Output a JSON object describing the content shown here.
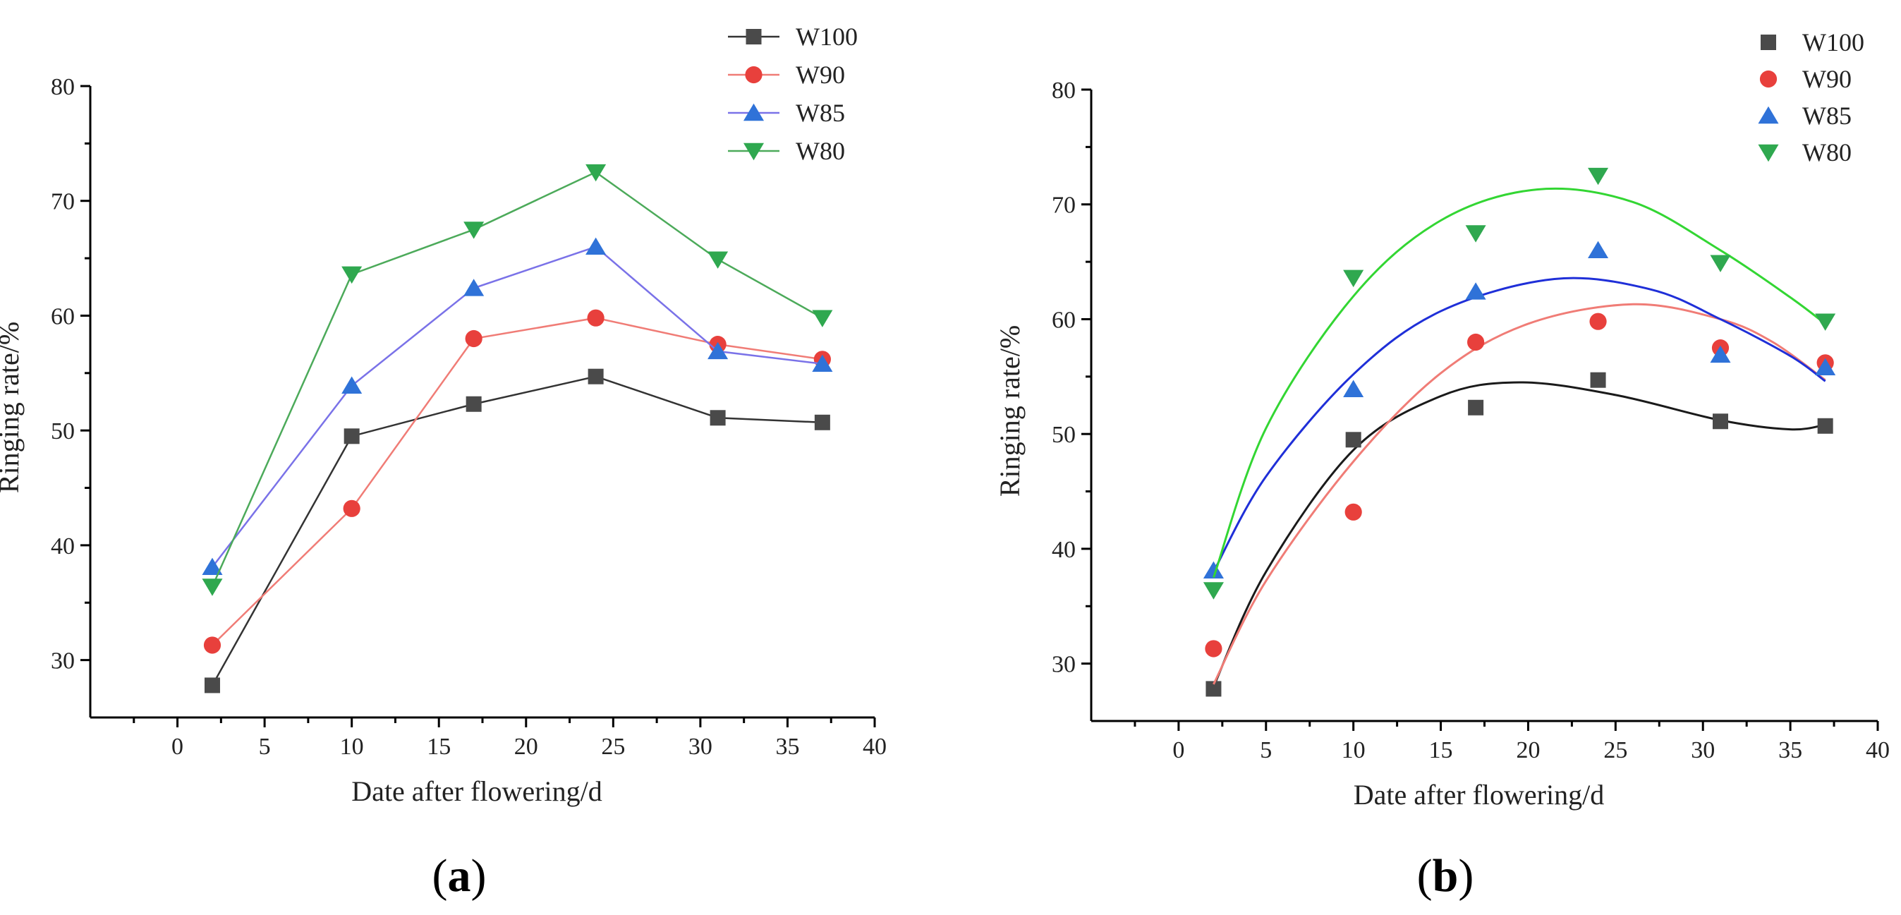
{
  "chart_data": [
    {
      "type": "line",
      "panel_label": "(a)",
      "panel_letter": "a",
      "xlabel": "Date after flowering/d",
      "ylabel": "Ringing rate/%",
      "xlim": [
        -5,
        40
      ],
      "ylim": [
        25,
        80
      ],
      "xticks": [
        0,
        5,
        10,
        15,
        20,
        25,
        30,
        35,
        40
      ],
      "yticks": [
        30,
        40,
        50,
        60,
        70,
        80
      ],
      "legend_position": "top-right",
      "x": [
        2,
        10,
        17,
        24,
        31,
        37
      ],
      "series": [
        {
          "name": "W100",
          "marker": "square",
          "color": "#4a4a4a",
          "values": [
            27.8,
            49.5,
            52.3,
            54.7,
            51.1,
            50.7
          ]
        },
        {
          "name": "W90",
          "marker": "circle",
          "color": "#e8403c",
          "values": [
            31.3,
            43.2,
            58.0,
            59.8,
            57.5,
            56.2
          ]
        },
        {
          "name": "W85",
          "marker": "triangle-up",
          "color": "#2f72d8",
          "values": [
            38.1,
            53.9,
            62.4,
            66.0,
            56.9,
            55.8
          ]
        },
        {
          "name": "W80",
          "marker": "triangle-down",
          "color": "#2fa84f",
          "values": [
            36.4,
            63.6,
            67.5,
            72.5,
            64.9,
            59.8
          ]
        }
      ]
    },
    {
      "type": "scatter",
      "panel_label": "(b)",
      "panel_letter": "b",
      "xlabel": "Date after flowering/d",
      "ylabel": "Ringing rate/%",
      "xlim": [
        -5,
        40
      ],
      "ylim": [
        25,
        80
      ],
      "xticks": [
        0,
        5,
        10,
        15,
        20,
        25,
        30,
        35,
        40
      ],
      "yticks": [
        30,
        40,
        50,
        60,
        70,
        80
      ],
      "legend_position": "top-right",
      "x": [
        2,
        10,
        17,
        24,
        31,
        37
      ],
      "series": [
        {
          "name": "W100",
          "marker": "square",
          "color": "#4a4a4a",
          "line_color": "#1a1a1a",
          "values": [
            27.8,
            49.5,
            52.3,
            54.7,
            51.1,
            50.7
          ],
          "fit_x": [
            2,
            5,
            10,
            15,
            19.5,
            25,
            31,
            35,
            37
          ],
          "fit_y": [
            28.0,
            38.0,
            48.6,
            53.3,
            54.5,
            53.4,
            51.2,
            50.4,
            50.8
          ]
        },
        {
          "name": "W90",
          "marker": "circle",
          "color": "#e8403c",
          "line_color": "#f07c76",
          "values": [
            31.3,
            43.2,
            58.0,
            59.8,
            57.5,
            56.2
          ],
          "fit_x": [
            2,
            5,
            10,
            15,
            20,
            26,
            31,
            34,
            37
          ],
          "fit_y": [
            28.2,
            37.2,
            47.6,
            55.3,
            59.6,
            61.3,
            60.0,
            58.0,
            54.7
          ]
        },
        {
          "name": "W85",
          "marker": "triangle-up",
          "color": "#2f72d8",
          "line_color": "#1f2fd8",
          "values": [
            38.1,
            53.9,
            62.4,
            66.0,
            56.9,
            55.8
          ],
          "fit_x": [
            2,
            5,
            10,
            15,
            21.5,
            27,
            31,
            35,
            37
          ],
          "fit_y": [
            38.0,
            46.3,
            55.2,
            60.7,
            63.5,
            62.6,
            60.0,
            56.8,
            54.6
          ]
        },
        {
          "name": "W80",
          "marker": "triangle-down",
          "color": "#2fa84f",
          "line_color": "#33d633",
          "values": [
            36.4,
            63.6,
            67.5,
            72.5,
            64.9,
            59.8
          ],
          "fit_x": [
            2,
            5,
            10,
            15,
            20.5,
            26,
            31,
            35,
            37
          ],
          "fit_y": [
            37.5,
            50.5,
            62.0,
            68.6,
            71.3,
            70.2,
            66.0,
            61.9,
            59.6
          ]
        }
      ]
    }
  ]
}
